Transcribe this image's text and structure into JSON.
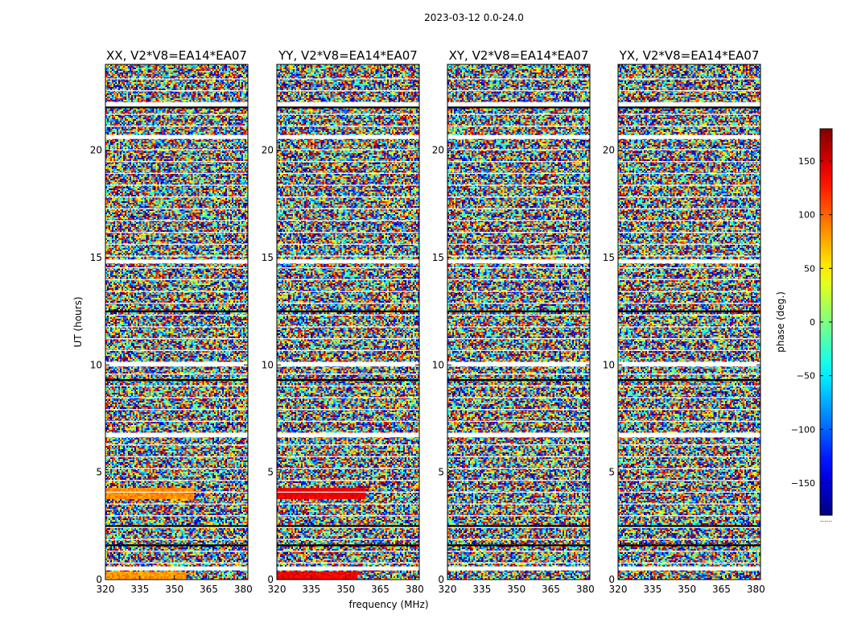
{
  "suptitle": "2023-03-12 0.0-24.0",
  "chart_data": {
    "type": "heatmap",
    "suptitle": "2023-03-12 0.0-24.0",
    "xlabel": "frequency (MHz)",
    "ylabel": "UT (hours)",
    "xlim": [
      320,
      382
    ],
    "ylim": [
      0,
      24
    ],
    "xticks": [
      "320",
      "335",
      "350",
      "365",
      "380"
    ],
    "yticks": [
      "0",
      "5",
      "10",
      "15",
      "20"
    ],
    "colorbar": {
      "label": "phase (deg.)",
      "range": [
        -180,
        180
      ],
      "ticks": [
        "150",
        "100",
        "50",
        "0",
        "−50",
        "−100",
        "−150"
      ],
      "colormap": "jet",
      "colors": [
        "#00007f",
        "#0000ff",
        "#00ffff",
        "#ffff00",
        "#ff0000",
        "#7f0000"
      ],
      "under_mark": "......"
    },
    "panels": [
      {
        "title": "XX, V2*V8=EA14*EA07"
      },
      {
        "title": "YY, V2*V8=EA14*EA07"
      },
      {
        "title": "XY, V2*V8=EA14*EA07"
      },
      {
        "title": "YX, V2*V8=EA14*EA07"
      }
    ],
    "flagged_ut_hours": [
      22.1,
      20.6,
      14.8,
      10.0,
      6.7,
      0.5
    ],
    "scan_boundary_ut_hours": [
      22.0,
      12.5,
      9.3,
      2.5,
      1.6
    ],
    "value_description": "visibility phase noise, -180 to 180 deg"
  }
}
